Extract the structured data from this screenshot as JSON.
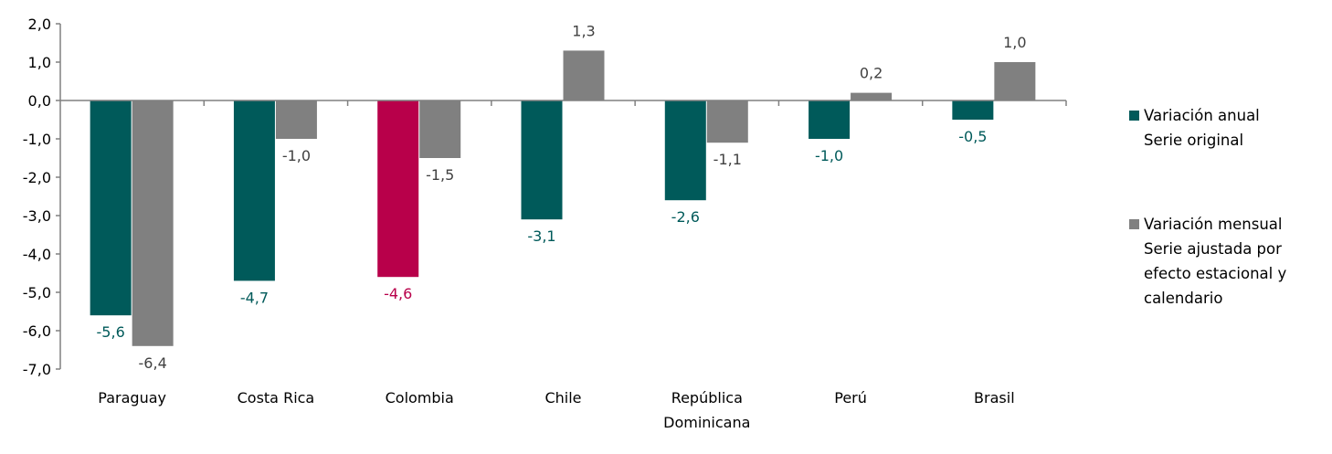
{
  "chart_data": {
    "type": "bar",
    "categories": [
      "Paraguay",
      "Costa Rica",
      "Colombia",
      "Chile",
      "República Dominicana",
      "Perú",
      "Brasil"
    ],
    "category_lines": [
      [
        "Paraguay"
      ],
      [
        "Costa Rica"
      ],
      [
        "Colombia"
      ],
      [
        "Chile"
      ],
      [
        "República",
        "Dominicana"
      ],
      [
        "Perú"
      ],
      [
        "Brasil"
      ]
    ],
    "series": [
      {
        "name": "Variación anual Serie original",
        "legend_lines": [
          "Variación anual",
          "Serie original"
        ],
        "color": "#005a5a",
        "values": [
          -5.6,
          -4.7,
          -4.6,
          -3.1,
          -2.6,
          -1.0,
          -0.5
        ],
        "labels": [
          "-5,6",
          "-4,7",
          "-4,6",
          "-3,1",
          "-2,6",
          "-1,0",
          "-0,5"
        ],
        "highlight": {
          "Colombia": "#b8004a"
        }
      },
      {
        "name": "Variación mensual Serie ajustada por efecto estacional y calendario",
        "legend_lines": [
          "Variación mensual",
          "Serie ajustada por",
          "efecto estacional y",
          "calendario"
        ],
        "color": "#808080",
        "values": [
          -6.4,
          -1.0,
          -1.5,
          1.3,
          -1.1,
          0.2,
          1.0
        ],
        "labels": [
          "-6,4",
          "-1,0",
          "-1,5",
          "1,3",
          "-1,1",
          "0,2",
          "1,0"
        ]
      }
    ],
    "yticks": [
      2,
      1,
      0,
      -1,
      -2,
      -3,
      -4,
      -5,
      -6,
      -7
    ],
    "ytick_labels": [
      "2,0",
      "1,0",
      "0,0",
      "-1,0",
      "-2,0",
      "-3,0",
      "-4,0",
      "-5,0",
      "-6,0",
      "-7,0"
    ],
    "ylim": [
      -7,
      2
    ],
    "grid": false,
    "legend_position": "right"
  }
}
